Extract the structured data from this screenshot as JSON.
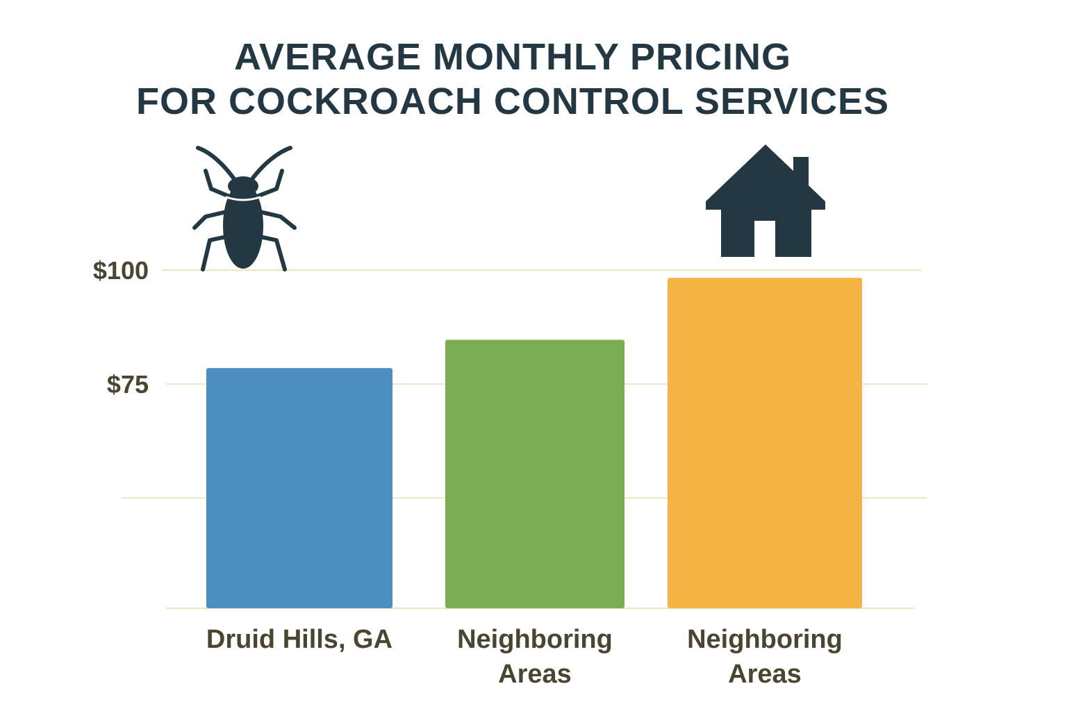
{
  "chart_data": {
    "type": "bar",
    "title_lines": [
      "AVERAGE MONTHLY PRICING",
      "FOR COCKROACH CONTROL SERVICES"
    ],
    "categories": [
      "Druid Hills, GA",
      "Neighboring Areas",
      "Neighboring Areas"
    ],
    "category_lines": [
      [
        "Druid Hills, GA"
      ],
      [
        "Neighboring",
        "Areas"
      ],
      [
        "Neighboring",
        "Areas"
      ]
    ],
    "values": [
      78.5,
      84.7,
      98.3
    ],
    "colors": [
      "#4d8ec0",
      "#7bad55",
      "#f4b343"
    ],
    "yticks": [
      {
        "value": 100,
        "label": "$100"
      },
      {
        "value": 75,
        "label": "$75"
      },
      {
        "value": 50,
        "label": ""
      },
      {
        "value": 25.8,
        "label": ""
      }
    ],
    "ylim": [
      25.8,
      100
    ],
    "grid": true,
    "xlabel": "",
    "ylabel": "",
    "icons": [
      "cockroach-icon",
      "house-icon"
    ],
    "text_color": "#233842",
    "grid_color": "#ece5c4"
  }
}
